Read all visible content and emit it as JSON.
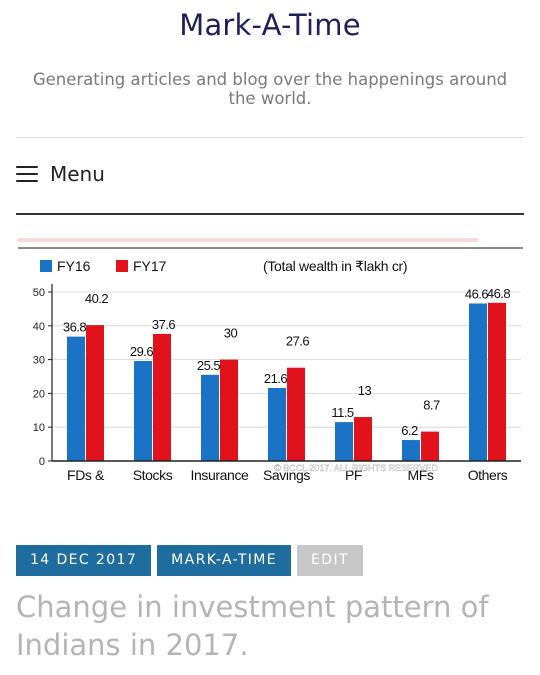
{
  "site": {
    "title": "Mark-A-Time",
    "description": "Generating articles and blog over the happenings around the world."
  },
  "nav": {
    "menu_label": "Menu",
    "menu_icon": "hamburger-icon"
  },
  "chart_data": {
    "type": "bar",
    "categories": [
      "FDs &",
      "Stocks",
      "Insurance",
      "Savings",
      "PF",
      "MFs",
      "Others"
    ],
    "series": [
      {
        "name": "FY16",
        "color": "#1a73c4",
        "values": [
          36.8,
          29.6,
          25.5,
          21.6,
          11.5,
          6.2,
          46.6
        ]
      },
      {
        "name": "FY17",
        "color": "#e0131c",
        "values": [
          40.2,
          37.6,
          30,
          27.6,
          13,
          8.7,
          46.8
        ]
      }
    ],
    "value_labels": {
      "FY16": [
        "36.8",
        "29.6",
        "25.5",
        "21.6",
        "11.5",
        "6.2",
        "46.6"
      ],
      "FY17": [
        "40.2",
        "37.6",
        "30",
        "27.6",
        "13",
        "8.7",
        "46.8"
      ]
    },
    "subtitle": "(Total wealth in ₹lakh cr)",
    "yticks": [
      "0",
      "10",
      "20",
      "30",
      "40",
      "50"
    ],
    "ylim": [
      0,
      50
    ],
    "grid": true,
    "legend": "top-left",
    "watermark": "© BCCL 2017. ALL RIGHTS RESERVED"
  },
  "post": {
    "date": "14 DEC 2017",
    "category": "MARK-A-TIME",
    "edit": "EDIT",
    "title": "Change in investment pattern of Indians in 2017."
  }
}
